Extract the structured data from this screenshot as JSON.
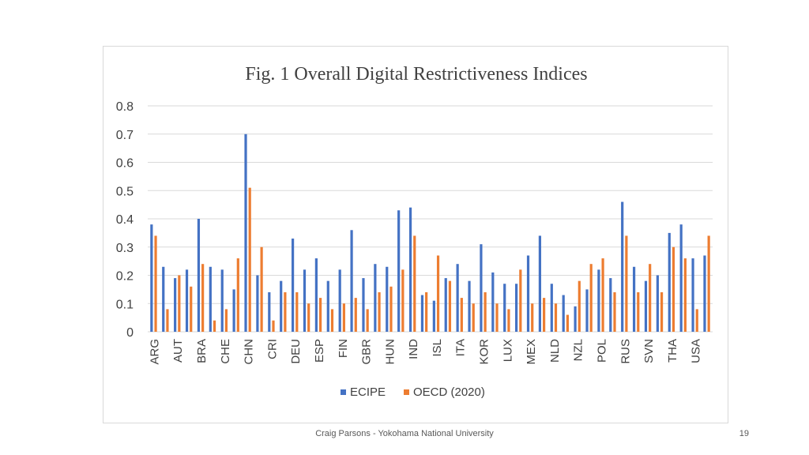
{
  "chart_data": {
    "type": "bar",
    "title": "Fig. 1 Overall Digital Restrictiveness Indices",
    "xlabel": "",
    "ylabel": "",
    "ylim": [
      0,
      0.8
    ],
    "yticks": [
      "0",
      "0.1",
      "0.2",
      "0.3",
      "0.4",
      "0.5",
      "0.6",
      "0.7",
      "0.8"
    ],
    "grid": true,
    "legend_position": "bottom",
    "categories": [
      "ARG",
      "",
      "AUT",
      "",
      "BRA",
      "",
      "CHE",
      "",
      "CHN",
      "",
      "CRI",
      "",
      "DEU",
      "",
      "ESP",
      "",
      "FIN",
      "",
      "GBR",
      "",
      "HUN",
      "",
      "IND",
      "",
      "ISL",
      "",
      "ITA",
      "",
      "KOR",
      "",
      "LUX",
      "",
      "MEX",
      "",
      "NLD",
      "",
      "NZL",
      "",
      "POL",
      "",
      "RUS",
      "",
      "SVN",
      "",
      "THA",
      "",
      "USA",
      ""
    ],
    "series": [
      {
        "name": "ECIPE",
        "color": "#4472C4",
        "values": [
          0.38,
          0.23,
          0.19,
          0.22,
          0.4,
          0.23,
          0.22,
          0.15,
          0.7,
          0.2,
          0.14,
          0.18,
          0.33,
          0.22,
          0.26,
          0.18,
          0.22,
          0.36,
          0.19,
          0.24,
          0.23,
          0.43,
          0.44,
          0.13,
          0.11,
          0.19,
          0.24,
          0.18,
          0.31,
          0.21,
          0.17,
          0.17,
          0.27,
          0.34,
          0.17,
          0.13,
          0.09,
          0.15,
          0.22,
          0.19,
          0.46,
          0.23,
          0.18,
          0.2,
          0.35,
          0.38,
          0.26,
          0.27
        ]
      },
      {
        "name": "OECD (2020)",
        "color": "#ED7D31",
        "values": [
          0.34,
          0.08,
          0.2,
          0.16,
          0.24,
          0.04,
          0.08,
          0.26,
          0.51,
          0.3,
          0.04,
          0.14,
          0.14,
          0.1,
          0.12,
          0.08,
          0.1,
          0.12,
          0.08,
          0.14,
          0.16,
          0.22,
          0.34,
          0.14,
          0.27,
          0.18,
          0.12,
          0.1,
          0.14,
          0.1,
          0.08,
          0.22,
          0.1,
          0.12,
          0.1,
          0.06,
          0.18,
          0.24,
          0.26,
          0.14,
          0.34,
          0.14,
          0.24,
          0.14,
          0.3,
          0.26,
          0.08,
          0.34
        ]
      }
    ]
  },
  "footer": {
    "credit": "Craig Parsons - Yokohama National University",
    "slide_number": "19"
  }
}
